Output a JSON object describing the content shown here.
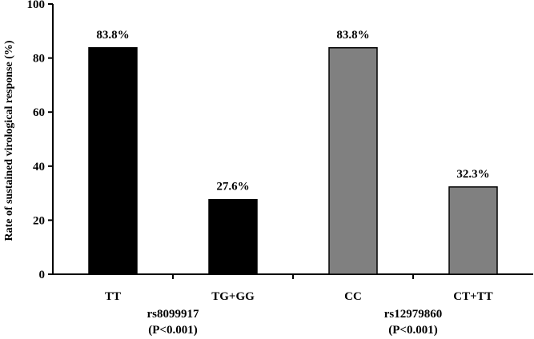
{
  "chart_data": {
    "type": "bar",
    "ylabel": "Rate of sustained virological response (%)",
    "ylim": [
      0,
      100
    ],
    "yticks": [
      0,
      20,
      40,
      60,
      80,
      100
    ],
    "grid": false,
    "legend": "none",
    "categories": [
      "TT",
      "TG+GG",
      "CC",
      "CT+TT"
    ],
    "values": [
      83.8,
      27.6,
      83.8,
      32.3
    ],
    "data_labels": [
      "83.8%",
      "27.6%",
      "83.8%",
      "32.3%"
    ],
    "bar_colors": [
      "#000000",
      "#000000",
      "#808080",
      "#808080"
    ],
    "groups": [
      {
        "name": "rs8099917",
        "pvalue": "(P<0.001)",
        "categories": [
          "TT",
          "TG+GG"
        ]
      },
      {
        "name": "rs12979860",
        "pvalue": "(P<0.001)",
        "categories": [
          "CC",
          "CT+TT"
        ]
      }
    ]
  }
}
